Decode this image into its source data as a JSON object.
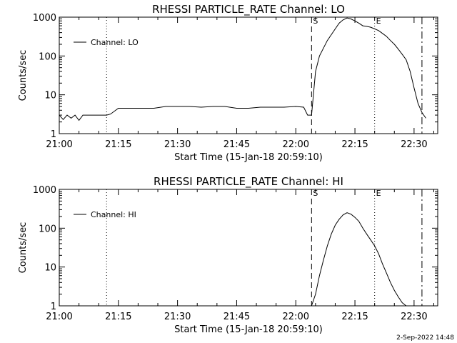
{
  "footer_timestamp": "2-Sep-2022 14:48",
  "chart_data": [
    {
      "type": "line",
      "title": "RHESSI PARTICLE_RATE Channel: LO",
      "xlabel": "Start Time (15-Jan-18 20:59:10)",
      "ylabel": "Counts/sec",
      "yscale": "log",
      "xlim": [
        "21:00",
        "22:36"
      ],
      "ylim": [
        1,
        1000
      ],
      "x_ticks": [
        "21:00",
        "21:15",
        "21:30",
        "21:45",
        "22:00",
        "22:15",
        "22:30"
      ],
      "y_ticks": [
        "1",
        "10",
        "100",
        "1000"
      ],
      "legend": {
        "label": "Channel: LO",
        "position": "top-left"
      },
      "markers": [
        {
          "label": "",
          "time": "21:12",
          "style": "dotted"
        },
        {
          "label": "S",
          "time": "22:04",
          "style": "dashed"
        },
        {
          "label": "E",
          "time": "22:20",
          "style": "dotted"
        },
        {
          "label": "",
          "time": "22:32",
          "style": "dash-dot"
        }
      ],
      "series": [
        {
          "name": "Channel: LO",
          "x": [
            "21:00",
            "21:01",
            "21:02",
            "21:03",
            "21:04",
            "21:05",
            "21:06",
            "21:07",
            "21:08",
            "21:09",
            "21:10",
            "21:11",
            "21:12",
            "21:13",
            "21:15",
            "21:18",
            "21:21",
            "21:24",
            "21:27",
            "21:30",
            "21:33",
            "21:36",
            "21:39",
            "21:42",
            "21:45",
            "21:48",
            "21:51",
            "21:54",
            "21:57",
            "22:00",
            "22:02",
            "22:03",
            "22:04",
            "22:05",
            "22:06",
            "22:08",
            "22:10",
            "22:11",
            "22:12",
            "22:13",
            "22:14",
            "22:15",
            "22:16",
            "22:17",
            "22:18",
            "22:19",
            "22:20",
            "22:21",
            "22:22",
            "22:23",
            "22:24",
            "22:25",
            "22:26",
            "22:27",
            "22:28",
            "22:29",
            "22:30",
            "22:31",
            "22:32",
            "22:33"
          ],
          "y": [
            3,
            2.3,
            3,
            2.5,
            3,
            2.2,
            3,
            3,
            3,
            3,
            3,
            3,
            3,
            3.2,
            4.5,
            4.5,
            4.5,
            4.5,
            5,
            5,
            5,
            4.8,
            5,
            5,
            4.5,
            4.5,
            4.8,
            4.8,
            4.8,
            5,
            4.8,
            3,
            3,
            40,
            100,
            250,
            500,
            700,
            850,
            950,
            900,
            800,
            700,
            600,
            580,
            550,
            500,
            450,
            380,
            320,
            250,
            200,
            150,
            110,
            80,
            40,
            15,
            6,
            3.5,
            2.5
          ]
        }
      ]
    },
    {
      "type": "line",
      "title": "RHESSI PARTICLE_RATE Channel: HI",
      "xlabel": "Start Time (15-Jan-18 20:59:10)",
      "ylabel": "Counts/sec",
      "yscale": "log",
      "xlim": [
        "21:00",
        "22:36"
      ],
      "ylim": [
        1,
        1000
      ],
      "x_ticks": [
        "21:00",
        "21:15",
        "21:30",
        "21:45",
        "22:00",
        "22:15",
        "22:30"
      ],
      "y_ticks": [
        "1",
        "10",
        "100",
        "1000"
      ],
      "legend": {
        "label": "Channel: HI",
        "position": "top-left"
      },
      "markers": [
        {
          "label": "",
          "time": "21:12",
          "style": "dotted"
        },
        {
          "label": "S",
          "time": "22:04",
          "style": "dashed"
        },
        {
          "label": "E",
          "time": "22:20",
          "style": "dotted"
        },
        {
          "label": "",
          "time": "22:32",
          "style": "dash-dot"
        }
      ],
      "series": [
        {
          "name": "Channel: HI",
          "x": [
            "22:04",
            "22:05",
            "22:06",
            "22:07",
            "22:08",
            "22:09",
            "22:10",
            "22:11",
            "22:12",
            "22:13",
            "22:14",
            "22:15",
            "22:16",
            "22:17",
            "22:18",
            "22:19",
            "22:20",
            "22:21",
            "22:22",
            "22:23",
            "22:24",
            "22:25",
            "22:26",
            "22:27",
            "22:28"
          ],
          "y": [
            1,
            2,
            6,
            15,
            35,
            70,
            120,
            170,
            220,
            250,
            230,
            190,
            150,
            100,
            70,
            50,
            35,
            22,
            12,
            7,
            4,
            2.5,
            1.7,
            1.2,
            1
          ]
        }
      ]
    }
  ]
}
